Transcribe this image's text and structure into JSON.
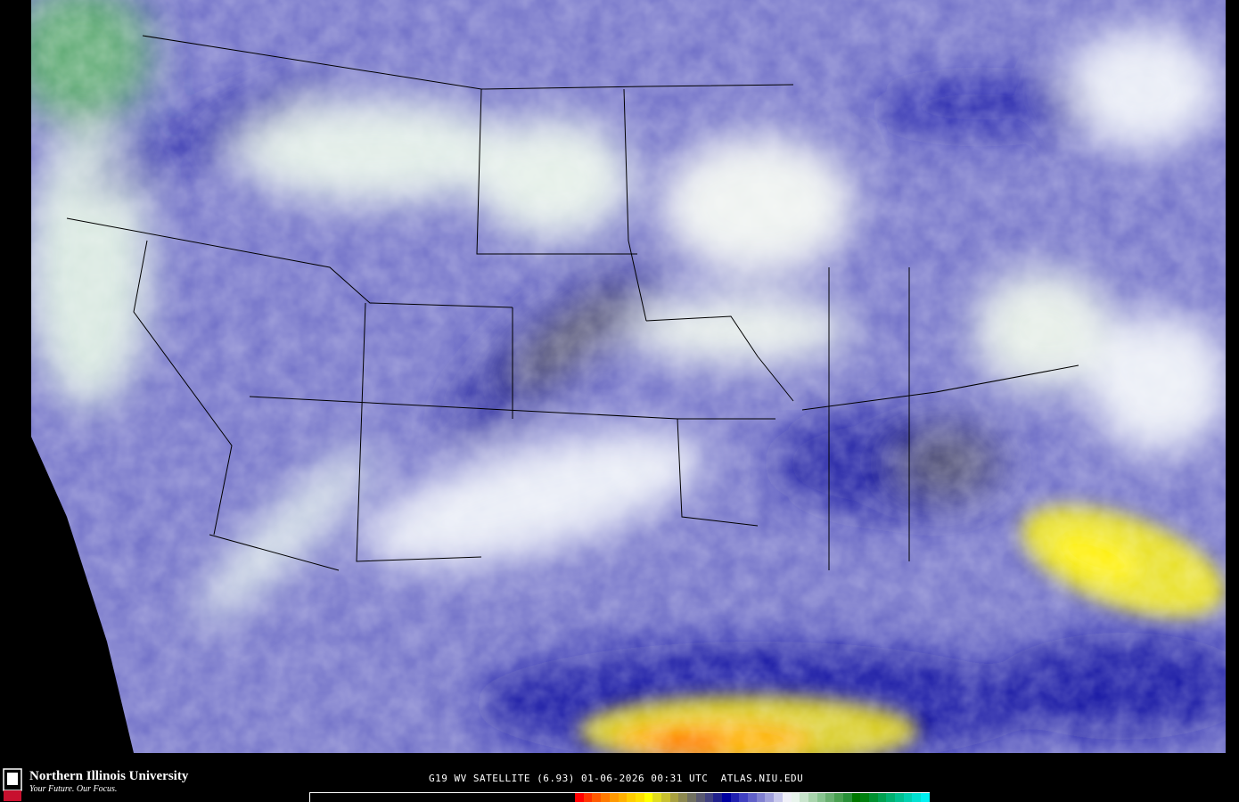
{
  "footer": {
    "university_name": "Northern Illinois University",
    "university_tagline": "Your Future. Our Focus.",
    "logo_text": "NIU",
    "caption": "G19 WV SATELLITE (6.93) 01-06-2026 00:31 UTC  ATLAS.NIU.EDU"
  },
  "map": {
    "product": "water vapor satellite imagery",
    "region": "contiguous United States",
    "background_color": "#000000",
    "border_color": "#000000"
  },
  "colorbar": {
    "colors": [
      "#ff0000",
      "#ff3300",
      "#ff5a00",
      "#ff7a00",
      "#ff9900",
      "#ffb000",
      "#ffcc00",
      "#ffe000",
      "#ffff00",
      "#e0dc20",
      "#c8c030",
      "#a8a040",
      "#8c8850",
      "#707060",
      "#585870",
      "#404080",
      "#20208c",
      "#0000a0",
      "#2020b0",
      "#4040c0",
      "#6060c8",
      "#8080d0",
      "#a0a0dc",
      "#c8c8ec",
      "#f0f0f8",
      "#e8f4ec",
      "#c8e4cc",
      "#a8d4ac",
      "#88c490",
      "#68b070",
      "#48a050",
      "#289038",
      "#007800",
      "#008010",
      "#009030",
      "#00a050",
      "#00b070",
      "#00c090",
      "#00d0b0",
      "#00e0d0",
      "#00f0f0"
    ]
  }
}
